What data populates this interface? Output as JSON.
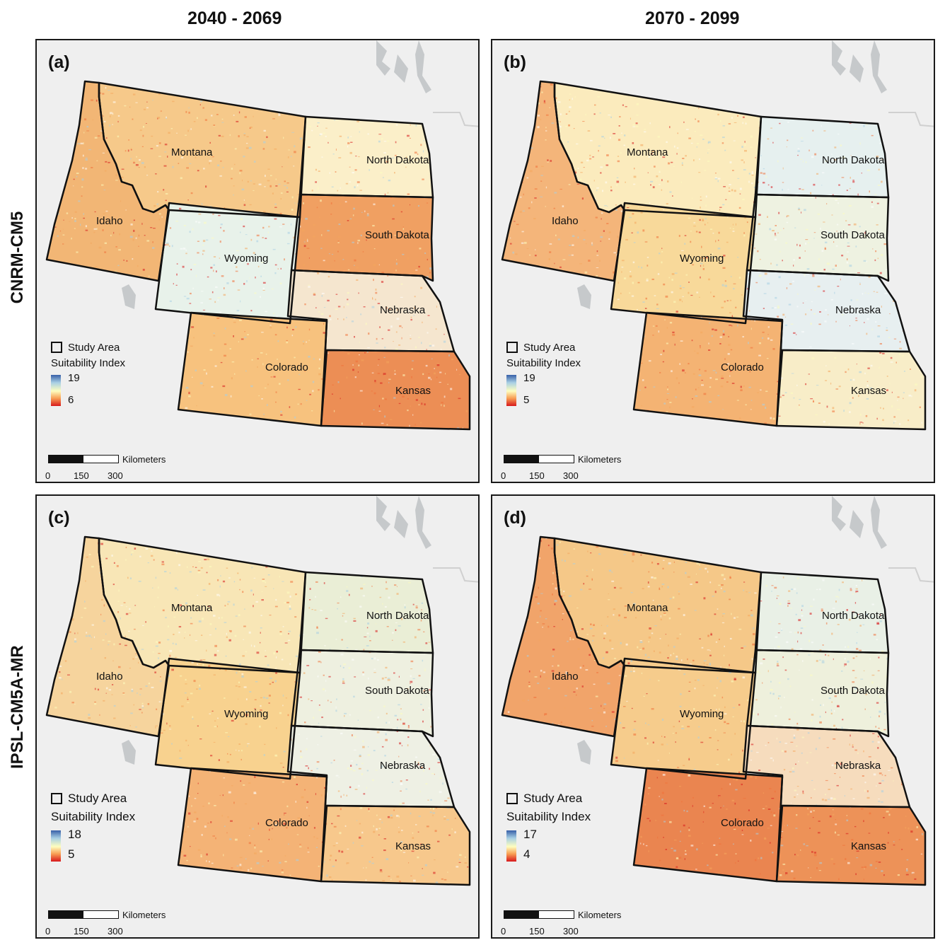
{
  "columns": [
    "2040 - 2069",
    "2070 - 2099"
  ],
  "rows": [
    "CNRM-CM5",
    "IPSL-CM5A-MR"
  ],
  "states": [
    "Montana",
    "North Dakota",
    "South Dakota",
    "Idaho",
    "Wyoming",
    "Nebraska",
    "Colorado",
    "Kansas"
  ],
  "legend": {
    "study_area": "Study Area",
    "title": "Suitability Index"
  },
  "scale": {
    "unit": "Kilometers",
    "ticks": [
      "0",
      "150",
      "300"
    ]
  },
  "panels": [
    {
      "label": "(a)",
      "max": "19",
      "min": "6"
    },
    {
      "label": "(b)",
      "max": "19",
      "min": "5"
    },
    {
      "label": "(c)",
      "max": "18",
      "min": "5"
    },
    {
      "label": "(d)",
      "max": "17",
      "min": "4"
    }
  ],
  "colors": {
    "high": "#3860a8",
    "mid": "#fefebf",
    "low": "#d7191c",
    "background": "#efefef",
    "lake": "#c6c9cb"
  }
}
